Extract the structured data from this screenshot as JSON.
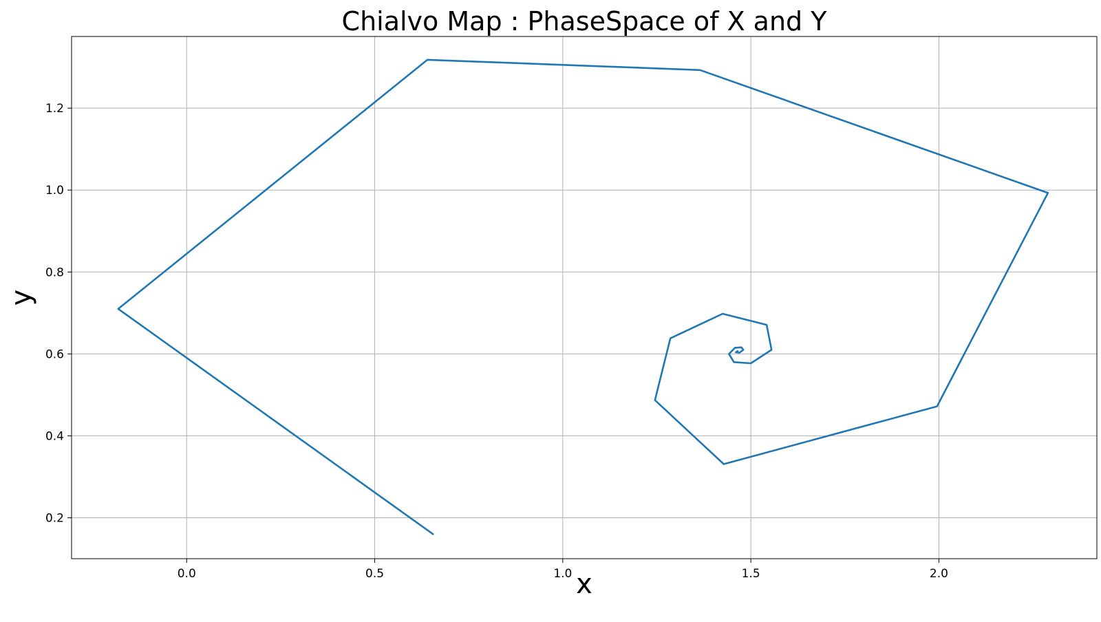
{
  "chart_data": {
    "type": "line",
    "title": "Chialvo Map : PhaseSpace of X and Y",
    "xlabel": "x",
    "ylabel": "y",
    "xlim": [
      -0.306,
      2.42
    ],
    "ylim": [
      0.1,
      1.375
    ],
    "grid": true,
    "legend": "none",
    "x_ticks": [
      0.0,
      0.5,
      1.0,
      1.5,
      2.0
    ],
    "x_tick_labels": [
      "0.0",
      "0.5",
      "1.0",
      "1.5",
      "2.0"
    ],
    "y_ticks": [
      0.2,
      0.4,
      0.6,
      0.8,
      1.0,
      1.2
    ],
    "y_tick_labels": [
      "0.2",
      "0.4",
      "0.6",
      "0.8",
      "1.0",
      "1.2"
    ],
    "series": [
      {
        "color": "#1f77b4",
        "x": [
          0.655,
          -0.182,
          0.64,
          1.365,
          2.29,
          1.995,
          1.428,
          1.245,
          1.286,
          1.425,
          1.542,
          1.555,
          1.5,
          1.455,
          1.442,
          1.458,
          1.475,
          1.48,
          1.47,
          1.46,
          1.465
        ],
        "y": [
          0.16,
          0.71,
          1.318,
          1.293,
          0.993,
          0.472,
          0.331,
          0.487,
          0.638,
          0.698,
          0.671,
          0.61,
          0.577,
          0.58,
          0.6,
          0.615,
          0.616,
          0.61,
          0.603,
          0.604,
          0.607
        ]
      }
    ]
  }
}
